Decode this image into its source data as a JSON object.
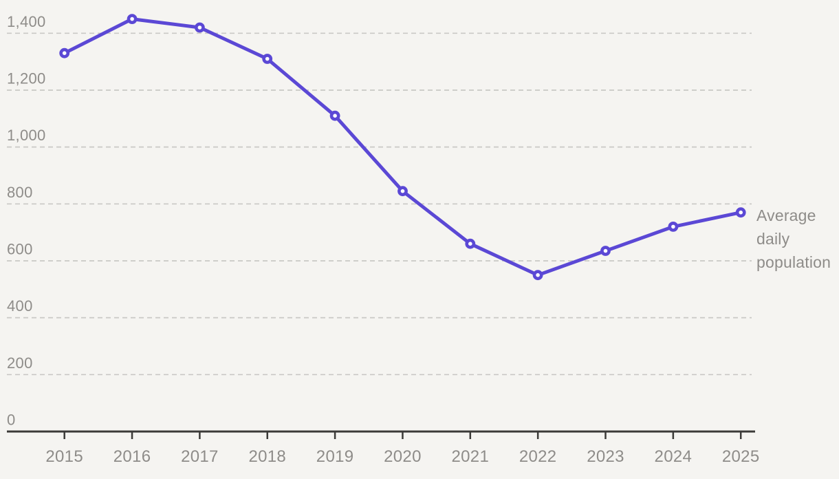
{
  "chart_data": {
    "type": "line",
    "title": "",
    "xlabel": "",
    "ylabel": "",
    "x": [
      "2015",
      "2016",
      "2017",
      "2018",
      "2019",
      "2020",
      "2021",
      "2022",
      "2023",
      "2024",
      "2025"
    ],
    "series": [
      {
        "name": "Average daily population",
        "values": [
          1330,
          1450,
          1420,
          1310,
          1110,
          845,
          660,
          550,
          635,
          720,
          770
        ]
      }
    ],
    "series_label": "Average daily population",
    "ylim": [
      0,
      1400
    ],
    "yticks": [
      {
        "value": 0,
        "label": "0"
      },
      {
        "value": 200,
        "label": "200"
      },
      {
        "value": 400,
        "label": "400"
      },
      {
        "value": 600,
        "label": "600"
      },
      {
        "value": 800,
        "label": "800"
      },
      {
        "value": 1000,
        "label": "1,000"
      },
      {
        "value": 1200,
        "label": "1,200"
      },
      {
        "value": 1400,
        "label": "1,400"
      }
    ],
    "grid": "horizontal-dashed",
    "legend_position": "right-of-last-point",
    "marker": "open-circle",
    "colors": {
      "background": "#f5f4f1",
      "line": "#5b48d5",
      "marker_fill": "#ffffff",
      "grid": "#c9c8c5",
      "axis": "#3b3a38",
      "tick_label": "#8e8c89",
      "series_label": "#8e8c89"
    }
  }
}
